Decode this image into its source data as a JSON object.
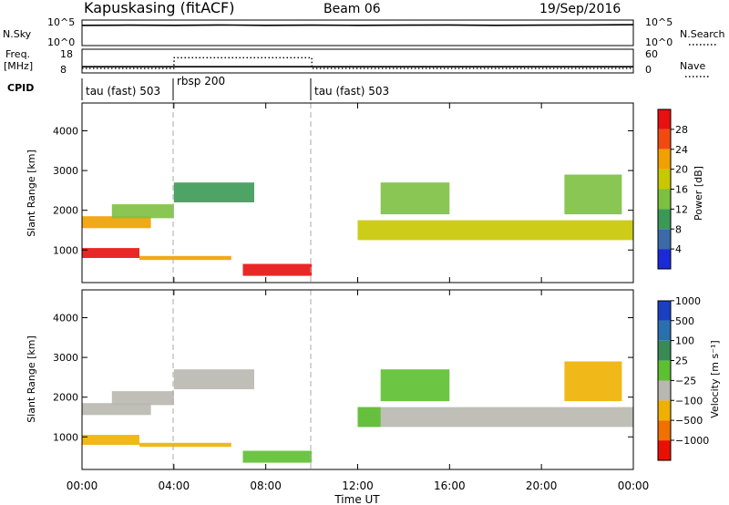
{
  "header": {
    "station": "Kapuskasing (fitACF)",
    "beam": "Beam 06",
    "date": "19/Sep/2016"
  },
  "noise_panel": {
    "left_label": "N.Sky",
    "right_label": "N.Search",
    "left_ticks": [
      "10^5",
      "10^0"
    ],
    "right_ticks": [
      "10^5",
      "10^0"
    ]
  },
  "freq_panel": {
    "left_label_line1": "Freq.",
    "left_label_line2": "[MHz]",
    "right_label": "Nave",
    "left_ticks": [
      "18",
      "8"
    ],
    "right_ticks": [
      "60",
      "0"
    ]
  },
  "cpid": {
    "label": "CPID",
    "modes": [
      "tau (fast) 503",
      "rbsp 200",
      "tau (fast) 503"
    ]
  },
  "power_panel": {
    "ylabel": "Slant Range [km]",
    "colorbar_label": "Power [dB]",
    "colorbar_ticks": [
      "28",
      "24",
      "20",
      "16",
      "12",
      "8",
      "4"
    ],
    "colorbar_colors": [
      "#e81010",
      "#f04a10",
      "#f0a000",
      "#c8c800",
      "#7cc040",
      "#3a9a55",
      "#3a6aa8",
      "#1a2ad8"
    ]
  },
  "velocity_panel": {
    "ylabel": "Slant Range [km]",
    "colorbar_label": "Velocity [m s⁻¹]",
    "colorbar_ticks": [
      "1000",
      "500",
      "100",
      "25",
      "−25",
      "−100",
      "−500",
      "−1000"
    ],
    "colorbar_colors": [
      "#1a3fc0",
      "#2a70b0",
      "#3a8a55",
      "#5cc030",
      "#b8b8b0",
      "#f0b000",
      "#f07000",
      "#e81000"
    ]
  },
  "xaxis": {
    "label": "Time UT",
    "ticks": [
      "00:00",
      "04:00",
      "08:00",
      "12:00",
      "16:00",
      "20:00",
      "00:00"
    ]
  },
  "chart_data": [
    {
      "type": "line",
      "title": "N.Sky",
      "x_hours": [
        0,
        2,
        4,
        6,
        8,
        10,
        12,
        14,
        16,
        18,
        20,
        22,
        24
      ],
      "y_log10": [
        4.2,
        4.25,
        4.2,
        4.3,
        4.2,
        4.25,
        4.2,
        4.25,
        4.3,
        4.2,
        4.25,
        4.3,
        4.35
      ]
    },
    {
      "type": "line",
      "title": "Freq.",
      "x_hours": [
        0,
        4,
        4.01,
        10,
        10.01,
        24
      ],
      "series": [
        {
          "name": "Freq.",
          "values": [
            10.2,
            10.2,
            10.2,
            10.2,
            10.2,
            10.2
          ]
        },
        {
          "name": "Nave",
          "values": [
            8,
            8,
            40,
            40,
            8,
            8
          ]
        }
      ]
    },
    {
      "type": "heatmap",
      "title": "Power",
      "xlabel": "Time UT",
      "ylabel": "Slant Range [km]",
      "xlim_hours": [
        0,
        24
      ],
      "ylim_km": [
        180,
        4700
      ],
      "yticks": [
        1000,
        2000,
        3000,
        4000
      ],
      "colorbar_label": "Power [dB]",
      "colorbar_range": [
        0,
        32
      ],
      "regions": [
        {
          "t0": 0,
          "t1": 3,
          "r0": 1550,
          "r1": 1850,
          "v": 22
        },
        {
          "t0": 0,
          "t1": 2.5,
          "r0": 800,
          "r1": 1050,
          "v": 30
        },
        {
          "t0": 1.3,
          "t1": 4,
          "r0": 1800,
          "r1": 2150,
          "v": 14
        },
        {
          "t0": 2.5,
          "t1": 6.5,
          "r0": 750,
          "r1": 850,
          "v": 20
        },
        {
          "t0": 4,
          "t1": 7.5,
          "r0": 2200,
          "r1": 2700,
          "v": 9
        },
        {
          "t0": 7,
          "t1": 10,
          "r0": 350,
          "r1": 650,
          "v": 30
        },
        {
          "t0": 12,
          "t1": 24,
          "r0": 1250,
          "r1": 1750,
          "v": 16
        },
        {
          "t0": 13,
          "t1": 16,
          "r0": 1900,
          "r1": 2700,
          "v": 14
        },
        {
          "t0": 21,
          "t1": 23.5,
          "r0": 1900,
          "r1": 2900,
          "v": 14
        }
      ]
    },
    {
      "type": "heatmap",
      "title": "Velocity",
      "xlabel": "Time UT",
      "ylabel": "Slant Range [km]",
      "xlim_hours": [
        0,
        24
      ],
      "ylim_km": [
        180,
        4700
      ],
      "yticks": [
        1000,
        2000,
        3000,
        4000
      ],
      "colorbar_label": "Velocity [m s⁻¹]",
      "colorbar_range": [
        -1000,
        1000
      ],
      "regions": [
        {
          "t0": 0,
          "t1": 3,
          "r0": 1550,
          "r1": 1850,
          "v": 0
        },
        {
          "t0": 0,
          "t1": 2.5,
          "r0": 800,
          "r1": 1050,
          "v": -60
        },
        {
          "t0": 1.3,
          "t1": 4,
          "r0": 1800,
          "r1": 2150,
          "v": 0
        },
        {
          "t0": 2.5,
          "t1": 6.5,
          "r0": 750,
          "r1": 850,
          "v": -60
        },
        {
          "t0": 4,
          "t1": 7.5,
          "r0": 2200,
          "r1": 2700,
          "v": 0
        },
        {
          "t0": 7,
          "t1": 10,
          "r0": 350,
          "r1": 650,
          "v": 60
        },
        {
          "t0": 12,
          "t1": 24,
          "r0": 1250,
          "r1": 1750,
          "v": 0
        },
        {
          "t0": 12,
          "t1": 13,
          "r0": 1250,
          "r1": 1750,
          "v": 60
        },
        {
          "t0": 13,
          "t1": 16,
          "r0": 1900,
          "r1": 2700,
          "v": 60
        },
        {
          "t0": 21,
          "t1": 23.5,
          "r0": 1900,
          "r1": 2900,
          "v": -60
        }
      ]
    }
  ]
}
